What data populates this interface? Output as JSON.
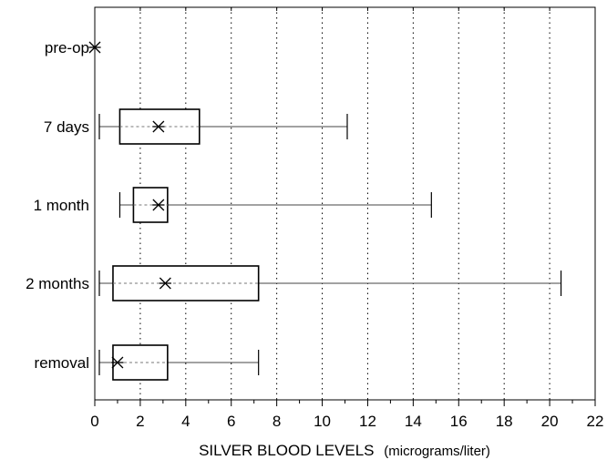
{
  "chart_data": {
    "type": "boxplot",
    "orientation": "horizontal",
    "title": "",
    "xlabel": "SILVER BLOOD LEVELS",
    "xlabel_unit": "(micrograms/liter)",
    "ylabel": "",
    "xlim": [
      0,
      22
    ],
    "x_ticks": [
      0,
      2,
      4,
      6,
      8,
      10,
      12,
      14,
      16,
      18,
      20,
      22
    ],
    "x_tick_labels": [
      "0",
      "2",
      "4",
      "6",
      "8",
      "10",
      "12",
      "14",
      "16",
      "18",
      "20",
      "22"
    ],
    "grid": "vertical dotted",
    "mean_marker": "asterisk",
    "categories": [
      "pre-op",
      "7 days",
      "1 month",
      "2 months",
      "removal"
    ],
    "boxes": [
      {
        "label": "pre-op",
        "min": 0,
        "q1": 0,
        "median": 0,
        "q3": 0,
        "max": 0,
        "mean": 0
      },
      {
        "label": "7 days",
        "min": 0.2,
        "q1": 1.1,
        "median": 1.1,
        "q3": 4.6,
        "max": 11.1,
        "mean": 2.8
      },
      {
        "label": "1 month",
        "min": 1.1,
        "q1": 1.7,
        "median": 1.7,
        "q3": 3.2,
        "max": 14.8,
        "mean": 2.8
      },
      {
        "label": "2 months",
        "min": 0.2,
        "q1": 0.8,
        "median": 0.8,
        "q3": 7.2,
        "max": 20.5,
        "mean": 3.1
      },
      {
        "label": "removal",
        "min": 0.2,
        "q1": 0.8,
        "median": 0.8,
        "q3": 3.2,
        "max": 7.2,
        "mean": 1.0
      }
    ]
  }
}
